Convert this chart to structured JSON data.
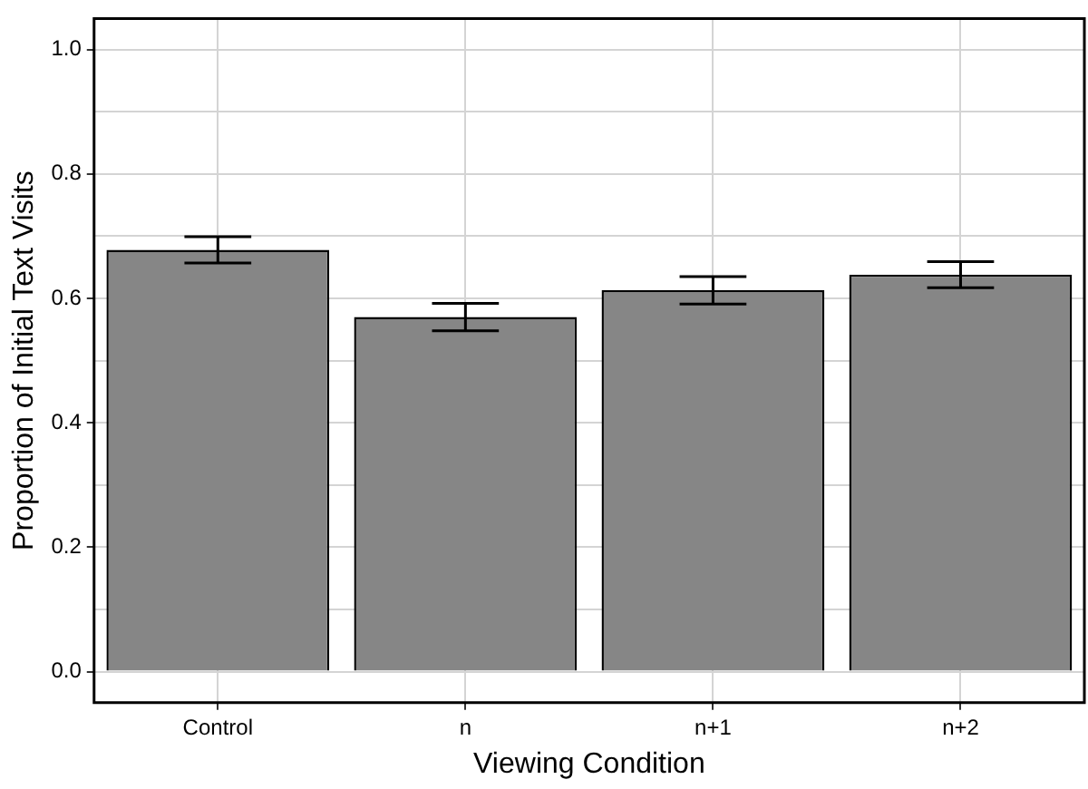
{
  "chart_data": {
    "type": "bar",
    "xlabel": "Viewing Condition",
    "ylabel": "Proportion of Initial Text Visits",
    "categories": [
      "Control",
      "n",
      "n+1",
      "n+2"
    ],
    "values": [
      0.678,
      0.57,
      0.613,
      0.638
    ],
    "errors": [
      0.021,
      0.022,
      0.022,
      0.021
    ],
    "color": "#868686",
    "ylim": [
      -0.05,
      1.05
    ],
    "yticks": [
      {
        "value": 0,
        "label": "0.0"
      },
      {
        "value": 0.1,
        "label": null
      },
      0.2,
      {
        "value": 0.3,
        "label": null
      },
      0.4,
      {
        "value": 0.5,
        "label": null
      },
      0.6,
      {
        "value": 0.7,
        "label": null
      },
      0.8,
      {
        "value": 0.9,
        "label": null
      },
      {
        "value": 1,
        "label": "1.0"
      }
    ],
    "grid": true
  }
}
